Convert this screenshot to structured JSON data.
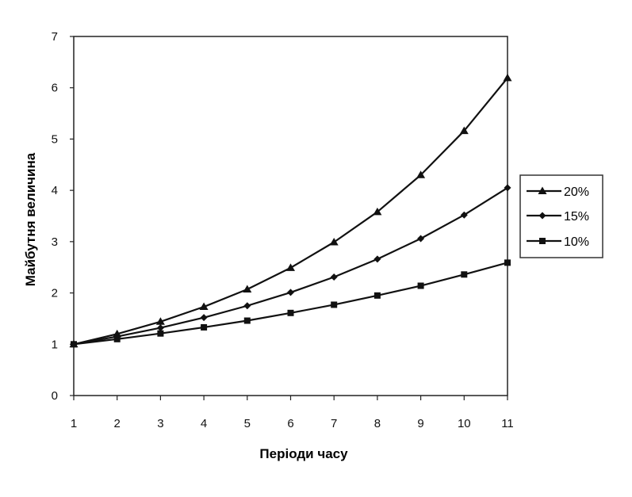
{
  "chart_data": {
    "type": "line",
    "title": "",
    "xlabel": "Періоди часу",
    "ylabel": "Майбутня величина",
    "x": [
      1,
      2,
      3,
      4,
      5,
      6,
      7,
      8,
      9,
      10,
      11
    ],
    "xlim": [
      1,
      11
    ],
    "ylim": [
      0,
      7
    ],
    "yticks": [
      0,
      1,
      2,
      3,
      4,
      5,
      6,
      7
    ],
    "grid": false,
    "legend_position": "right",
    "series": [
      {
        "name": "20%",
        "marker": "triangle",
        "values": [
          1.0,
          1.2,
          1.44,
          1.73,
          2.07,
          2.49,
          2.99,
          3.58,
          4.3,
          5.16,
          6.19
        ]
      },
      {
        "name": "15%",
        "marker": "diamond",
        "values": [
          1.0,
          1.15,
          1.32,
          1.52,
          1.75,
          2.01,
          2.31,
          2.66,
          3.06,
          3.52,
          4.05
        ]
      },
      {
        "name": "10%",
        "marker": "square",
        "values": [
          1.0,
          1.1,
          1.21,
          1.33,
          1.46,
          1.61,
          1.77,
          1.95,
          2.14,
          2.36,
          2.59
        ]
      }
    ],
    "colors": {
      "line": "#111111",
      "frame": "#222222"
    }
  }
}
